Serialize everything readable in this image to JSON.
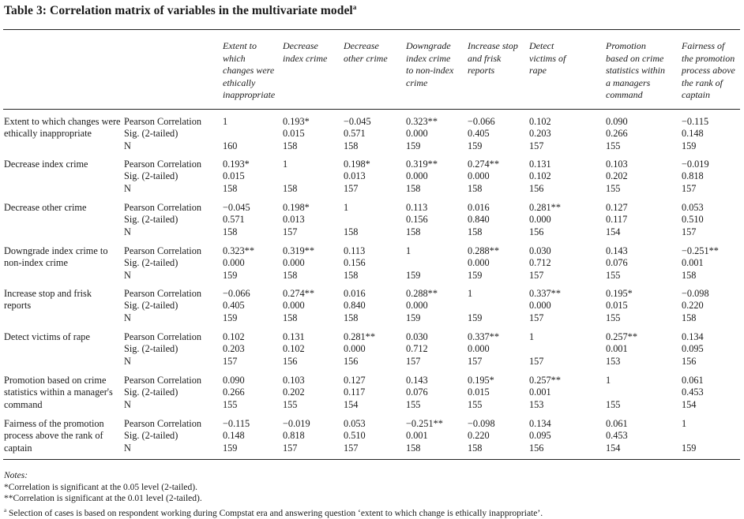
{
  "title": {
    "text": "Table 3: Correlation matrix of variables in the multivariate model",
    "sup": "a"
  },
  "columns": [
    "Extent to which changes were ethically inappropriate",
    "Decrease index crime",
    "Decrease other crime",
    "Downgrade index crime to non-index crime",
    "Increase stop and frisk reports",
    "Detect victims of rape",
    "Promotion based on crime statistics within a managers command",
    "Fairness of the promotion process above the rank of captain"
  ],
  "stat_labels": [
    "Pearson Correlation",
    "Sig. (2-tailed)",
    "N"
  ],
  "rows": [
    {
      "label": "Extent to which changes were ethically inappropriate",
      "r": [
        "1",
        "0.193*",
        "−0.045",
        "0.323**",
        "−0.066",
        "0.102",
        "0.090",
        "−0.115"
      ],
      "sig": [
        "",
        "0.015",
        "0.571",
        "0.000",
        "0.405",
        "0.203",
        "0.266",
        "0.148"
      ],
      "n": [
        "160",
        "158",
        "158",
        "159",
        "159",
        "157",
        "155",
        "159"
      ]
    },
    {
      "label": "Decrease index crime",
      "r": [
        "0.193*",
        "1",
        "0.198*",
        "0.319**",
        "0.274**",
        "0.131",
        "0.103",
        "−0.019"
      ],
      "sig": [
        "0.015",
        "",
        "0.013",
        "0.000",
        "0.000",
        "0.102",
        "0.202",
        "0.818"
      ],
      "n": [
        "158",
        "158",
        "157",
        "158",
        "158",
        "156",
        "155",
        "157"
      ]
    },
    {
      "label": "Decrease other crime",
      "r": [
        "−0.045",
        "0.198*",
        "1",
        "0.113",
        "0.016",
        "0.281**",
        "0.127",
        "0.053"
      ],
      "sig": [
        "0.571",
        "0.013",
        "",
        "0.156",
        "0.840",
        "0.000",
        "0.117",
        "0.510"
      ],
      "n": [
        "158",
        "157",
        "158",
        "158",
        "158",
        "156",
        "154",
        "157"
      ]
    },
    {
      "label": "Downgrade index crime to non-index crime",
      "r": [
        "0.323**",
        "0.319**",
        "0.113",
        "1",
        "0.288**",
        "0.030",
        "0.143",
        "−0.251**"
      ],
      "sig": [
        "0.000",
        "0.000",
        "0.156",
        "",
        "0.000",
        "0.712",
        "0.076",
        "0.001"
      ],
      "n": [
        "159",
        "158",
        "158",
        "159",
        "159",
        "157",
        "155",
        "158"
      ]
    },
    {
      "label": "Increase stop and frisk reports",
      "r": [
        "−0.066",
        "0.274**",
        "0.016",
        "0.288**",
        "1",
        "0.337**",
        "0.195*",
        "−0.098"
      ],
      "sig": [
        "0.405",
        "0.000",
        "0.840",
        "0.000",
        "",
        "0.000",
        "0.015",
        "0.220"
      ],
      "n": [
        "159",
        "158",
        "158",
        "159",
        "159",
        "157",
        "155",
        "158"
      ]
    },
    {
      "label": "Detect victims of rape",
      "r": [
        "0.102",
        "0.131",
        "0.281**",
        "0.030",
        "0.337**",
        "1",
        "0.257**",
        "0.134"
      ],
      "sig": [
        "0.203",
        "0.102",
        "0.000",
        "0.712",
        "0.000",
        "",
        "0.001",
        "0.095"
      ],
      "n": [
        "157",
        "156",
        "156",
        "157",
        "157",
        "157",
        "153",
        "156"
      ]
    },
    {
      "label": "Promotion based on crime statistics within a manager's command",
      "r": [
        "0.090",
        "0.103",
        "0.127",
        "0.143",
        "0.195*",
        "0.257**",
        "1",
        "0.061"
      ],
      "sig": [
        "0.266",
        "0.202",
        "0.117",
        "0.076",
        "0.015",
        "0.001",
        "",
        "0.453"
      ],
      "n": [
        "155",
        "155",
        "154",
        "155",
        "155",
        "153",
        "155",
        "154"
      ]
    },
    {
      "label": "Fairness of the promotion process above the rank of captain",
      "r": [
        "−0.115",
        "−0.019",
        "0.053",
        "−0.251**",
        "−0.098",
        "0.134",
        "0.061",
        "1"
      ],
      "sig": [
        "0.148",
        "0.818",
        "0.510",
        "0.001",
        "0.220",
        "0.095",
        "0.453",
        ""
      ],
      "n": [
        "159",
        "157",
        "157",
        "158",
        "158",
        "156",
        "154",
        "159"
      ]
    }
  ],
  "notes": {
    "heading": "Notes:",
    "lines": [
      "*Correlation is significant at the 0.05 level (2-tailed).",
      "**Correlation is significant at the 0.01 level (2-tailed)."
    ],
    "footnote_mark": "a",
    "footnote": " Selection of cases is based on respondent working during Compstat era and answering question ‘extent to which change is ethically inappropriate’."
  }
}
